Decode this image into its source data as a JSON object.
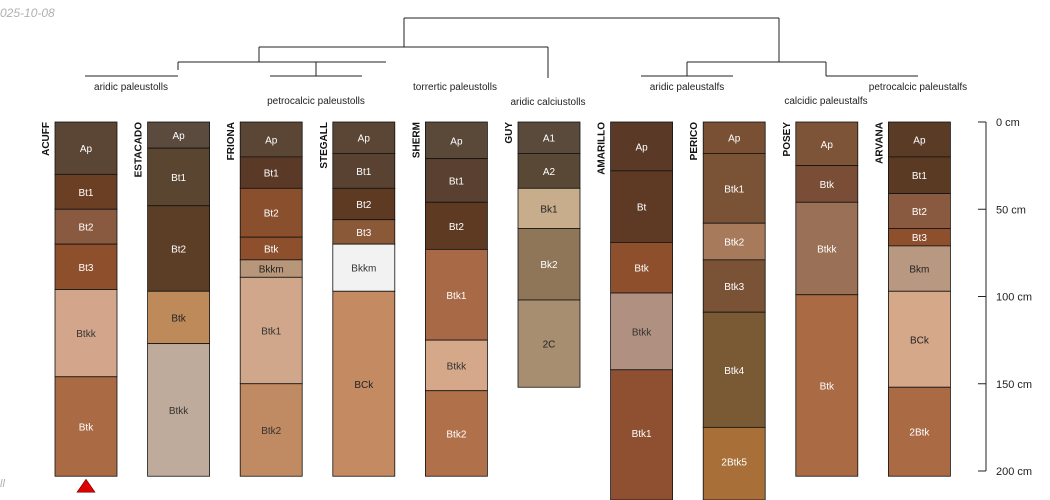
{
  "meta": {
    "date_stamp": "025-10-08",
    "corner_fragment": "ll"
  },
  "depth_axis": {
    "unit": "cm",
    "max": 200,
    "ticks": [
      {
        "value": 0,
        "label": "0 cm"
      },
      {
        "value": 50,
        "label": "50 cm"
      },
      {
        "value": 100,
        "label": "100 cm"
      },
      {
        "value": 150,
        "label": "150 cm"
      },
      {
        "value": 200,
        "label": "200 cm"
      }
    ]
  },
  "taxa": [
    {
      "label": "aridic paleustolls"
    },
    {
      "label": "petrocalcic paleustolls"
    },
    {
      "label": "torrertic paleustolls"
    },
    {
      "label": "aridic calciustolls"
    },
    {
      "label": "aridic paleustalfs"
    },
    {
      "label": "calcidic paleustalfs"
    },
    {
      "label": "petrocalcic paleustalfs"
    }
  ],
  "marker": {
    "profile": "ACUFF",
    "color": "#e00000"
  },
  "profiles": [
    {
      "name": "ACUFF",
      "horizons": [
        {
          "name": "Ap",
          "top": 0,
          "bottom": 30,
          "color": "#5b4636",
          "text": "#ffffff"
        },
        {
          "name": "Bt1",
          "top": 30,
          "bottom": 50,
          "color": "#6b3f24",
          "text": "#ffffff"
        },
        {
          "name": "Bt2",
          "top": 50,
          "bottom": 70,
          "color": "#8a5a40",
          "text": "#ffffff"
        },
        {
          "name": "Bt3",
          "top": 70,
          "bottom": 96,
          "color": "#8e4f2c",
          "text": "#ffffff"
        },
        {
          "name": "Btkk",
          "top": 96,
          "bottom": 146,
          "color": "#d3a68b",
          "text": "#333333"
        },
        {
          "name": "Btk",
          "top": 146,
          "bottom": 203,
          "color": "#a96a44",
          "text": "#ffffff"
        }
      ]
    },
    {
      "name": "ESTACADO",
      "horizons": [
        {
          "name": "Ap",
          "top": 0,
          "bottom": 15,
          "color": "#5b4a3e",
          "text": "#ffffff"
        },
        {
          "name": "Bt1",
          "top": 15,
          "bottom": 48,
          "color": "#5a4530",
          "text": "#ffffff"
        },
        {
          "name": "Bt2",
          "top": 48,
          "bottom": 97,
          "color": "#5c3d26",
          "text": "#ffffff"
        },
        {
          "name": "Btk",
          "top": 97,
          "bottom": 127,
          "color": "#bf8a5a",
          "text": "#222222"
        },
        {
          "name": "Btkk",
          "top": 127,
          "bottom": 203,
          "color": "#bfab9b",
          "text": "#333333"
        }
      ]
    },
    {
      "name": "FRIONA",
      "horizons": [
        {
          "name": "Ap",
          "top": 0,
          "bottom": 20,
          "color": "#5b4636",
          "text": "#ffffff"
        },
        {
          "name": "Bt1",
          "top": 20,
          "bottom": 38,
          "color": "#5a3a26",
          "text": "#ffffff"
        },
        {
          "name": "Bt2",
          "top": 38,
          "bottom": 66,
          "color": "#8a4f2c",
          "text": "#ffffff"
        },
        {
          "name": "Btk",
          "top": 66,
          "bottom": 79,
          "color": "#8e4f2c",
          "text": "#ffffff"
        },
        {
          "name": "Bkkm",
          "top": 79,
          "bottom": 89,
          "color": "#b8967a",
          "text": "#222222"
        },
        {
          "name": "Btk1",
          "top": 89,
          "bottom": 150,
          "color": "#d0a78a",
          "text": "#333333"
        },
        {
          "name": "Btk2",
          "top": 150,
          "bottom": 203,
          "color": "#c08a62",
          "text": "#333333"
        }
      ]
    },
    {
      "name": "STEGALL",
      "horizons": [
        {
          "name": "Ap",
          "top": 0,
          "bottom": 18,
          "color": "#5b4636",
          "text": "#ffffff"
        },
        {
          "name": "Bt1",
          "top": 18,
          "bottom": 38,
          "color": "#5a4232",
          "text": "#ffffff"
        },
        {
          "name": "Bt2",
          "top": 38,
          "bottom": 56,
          "color": "#5e3a22",
          "text": "#ffffff"
        },
        {
          "name": "Bt3",
          "top": 56,
          "bottom": 70,
          "color": "#8a5a38",
          "text": "#ffffff"
        },
        {
          "name": "Bkkm",
          "top": 70,
          "bottom": 97,
          "color": "#f2f2f2",
          "text": "#333333"
        },
        {
          "name": "BCk",
          "top": 97,
          "bottom": 203,
          "color": "#c48b62",
          "text": "#222222"
        }
      ]
    },
    {
      "name": "SHERM",
      "horizons": [
        {
          "name": "Ap",
          "top": 0,
          "bottom": 21,
          "color": "#5a4838",
          "text": "#ffffff"
        },
        {
          "name": "Bt1",
          "top": 21,
          "bottom": 46,
          "color": "#5a4030",
          "text": "#ffffff"
        },
        {
          "name": "Bt2",
          "top": 46,
          "bottom": 73,
          "color": "#5e3a22",
          "text": "#ffffff"
        },
        {
          "name": "Btk1",
          "top": 73,
          "bottom": 125,
          "color": "#a86a46",
          "text": "#ffffff"
        },
        {
          "name": "Btkk",
          "top": 125,
          "bottom": 154,
          "color": "#d6a88a",
          "text": "#333333"
        },
        {
          "name": "Btk2",
          "top": 154,
          "bottom": 203,
          "color": "#b0704a",
          "text": "#ffffff"
        }
      ]
    },
    {
      "name": "GUY",
      "horizons": [
        {
          "name": "A1",
          "top": 0,
          "bottom": 18,
          "color": "#5a4a3c",
          "text": "#ffffff"
        },
        {
          "name": "A2",
          "top": 18,
          "bottom": 38,
          "color": "#5a4837",
          "text": "#ffffff"
        },
        {
          "name": "Bk1",
          "top": 38,
          "bottom": 61,
          "color": "#c8ad8c",
          "text": "#222222"
        },
        {
          "name": "Bk2",
          "top": 61,
          "bottom": 102,
          "color": "#8f7658",
          "text": "#ffffff"
        },
        {
          "name": "2C",
          "top": 102,
          "bottom": 152,
          "color": "#a88e70",
          "text": "#222222"
        }
      ]
    },
    {
      "name": "AMARILLO",
      "horizons": [
        {
          "name": "Ap",
          "top": 0,
          "bottom": 28,
          "color": "#5a3a26",
          "text": "#ffffff"
        },
        {
          "name": "Bt",
          "top": 28,
          "bottom": 69,
          "color": "#5e3a24",
          "text": "#ffffff"
        },
        {
          "name": "Btk",
          "top": 69,
          "bottom": 98,
          "color": "#8e4f2c",
          "text": "#ffffff"
        },
        {
          "name": "Btkk",
          "top": 98,
          "bottom": 142,
          "color": "#b09080",
          "text": "#333333"
        },
        {
          "name": "Btk1",
          "top": 142,
          "bottom": 217,
          "color": "#8e5030",
          "text": "#ffffff"
        }
      ]
    },
    {
      "name": "PERICO",
      "horizons": [
        {
          "name": "Ap",
          "top": 0,
          "bottom": 18,
          "color": "#7a5034",
          "text": "#ffffff"
        },
        {
          "name": "Btk1",
          "top": 18,
          "bottom": 58,
          "color": "#7a5236",
          "text": "#ffffff"
        },
        {
          "name": "Btk2",
          "top": 58,
          "bottom": 79,
          "color": "#a67a5a",
          "text": "#ffffff"
        },
        {
          "name": "Btk3",
          "top": 79,
          "bottom": 109,
          "color": "#7a5236",
          "text": "#ffffff"
        },
        {
          "name": "Btk4",
          "top": 109,
          "bottom": 175,
          "color": "#7a5a34",
          "text": "#ffffff"
        },
        {
          "name": "2Btk5",
          "top": 175,
          "bottom": 217,
          "color": "#a87038",
          "text": "#ffffff"
        }
      ]
    },
    {
      "name": "POSEY",
      "horizons": [
        {
          "name": "Ap",
          "top": 0,
          "bottom": 25,
          "color": "#7e5438",
          "text": "#ffffff"
        },
        {
          "name": "Btk",
          "top": 25,
          "bottom": 46,
          "color": "#7a4e36",
          "text": "#ffffff"
        },
        {
          "name": "Btkk",
          "top": 46,
          "bottom": 99,
          "color": "#9a7056",
          "text": "#ffffff"
        },
        {
          "name": "Btk",
          "top": 99,
          "bottom": 203,
          "color": "#a96a44",
          "text": "#ffffff"
        }
      ]
    },
    {
      "name": "ARVANA",
      "horizons": [
        {
          "name": "Ap",
          "top": 0,
          "bottom": 20,
          "color": "#5a3c26",
          "text": "#ffffff"
        },
        {
          "name": "Bt1",
          "top": 20,
          "bottom": 41,
          "color": "#5a3a22",
          "text": "#ffffff"
        },
        {
          "name": "Bt2",
          "top": 41,
          "bottom": 61,
          "color": "#8a5a40",
          "text": "#ffffff"
        },
        {
          "name": "Bt3",
          "top": 61,
          "bottom": 71,
          "color": "#8e4f2c",
          "text": "#ffffff"
        },
        {
          "name": "Bkm",
          "top": 71,
          "bottom": 97,
          "color": "#b89880",
          "text": "#222222"
        },
        {
          "name": "BCk",
          "top": 97,
          "bottom": 152,
          "color": "#d6a88a",
          "text": "#222222"
        },
        {
          "name": "2Btk",
          "top": 152,
          "bottom": 203,
          "color": "#a96a44",
          "text": "#ffffff"
        }
      ]
    }
  ]
}
